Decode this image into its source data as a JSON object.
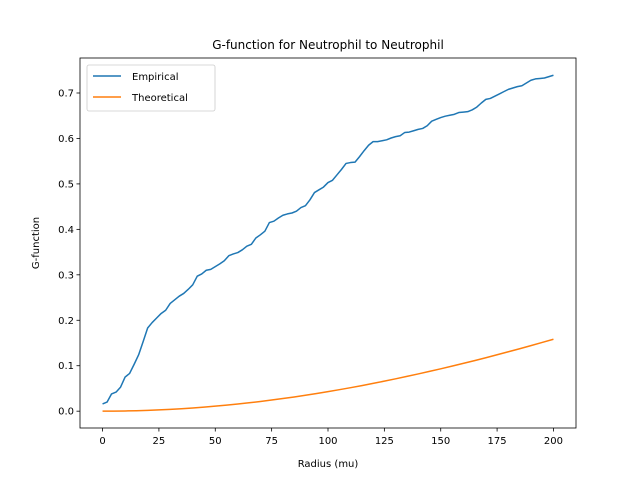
{
  "chart_data": {
    "type": "line",
    "title": "G-function for Neutrophil to Neutrophil",
    "xlabel": "Radius (mu)",
    "ylabel": "G-function",
    "xlim": [
      -10,
      210
    ],
    "ylim": [
      -0.037,
      0.777
    ],
    "xticks": [
      0,
      25,
      50,
      75,
      100,
      125,
      150,
      175,
      200
    ],
    "xtick_labels": [
      "0",
      "25",
      "50",
      "75",
      "100",
      "125",
      "150",
      "175",
      "200"
    ],
    "yticks": [
      0.0,
      0.1,
      0.2,
      0.3,
      0.4,
      0.5,
      0.6,
      0.7
    ],
    "ytick_labels": [
      "0.0",
      "0.1",
      "0.2",
      "0.3",
      "0.4",
      "0.5",
      "0.6",
      "0.7"
    ],
    "grid": false,
    "legend_position": "top-left",
    "series": [
      {
        "name": "Empirical",
        "color": "#1f77b4",
        "x": [
          0,
          2,
          4,
          6,
          8,
          10,
          12,
          14,
          16,
          18,
          20,
          22,
          24,
          26,
          28,
          30,
          32,
          34,
          36,
          38,
          40,
          42,
          44,
          46,
          48,
          50,
          52,
          54,
          56,
          58,
          60,
          62,
          64,
          66,
          68,
          70,
          72,
          74,
          76,
          78,
          80,
          82,
          84,
          86,
          88,
          90,
          92,
          94,
          96,
          98,
          100,
          102,
          104,
          106,
          108,
          110,
          112,
          114,
          116,
          118,
          120,
          122,
          124,
          126,
          128,
          130,
          132,
          134,
          136,
          138,
          140,
          142,
          144,
          146,
          148,
          150,
          152,
          154,
          156,
          158,
          160,
          162,
          164,
          166,
          168,
          170,
          172,
          174,
          176,
          178,
          180,
          182,
          184,
          186,
          188,
          190,
          192,
          194,
          196,
          198,
          200
        ],
        "values": [
          0.016,
          0.02,
          0.038,
          0.042,
          0.053,
          0.075,
          0.083,
          0.103,
          0.124,
          0.153,
          0.183,
          0.195,
          0.205,
          0.215,
          0.222,
          0.237,
          0.245,
          0.253,
          0.259,
          0.268,
          0.278,
          0.297,
          0.302,
          0.31,
          0.312,
          0.318,
          0.324,
          0.331,
          0.342,
          0.346,
          0.349,
          0.355,
          0.363,
          0.367,
          0.381,
          0.388,
          0.396,
          0.415,
          0.418,
          0.425,
          0.431,
          0.434,
          0.436,
          0.44,
          0.448,
          0.452,
          0.465,
          0.481,
          0.487,
          0.493,
          0.503,
          0.508,
          0.52,
          0.532,
          0.545,
          0.547,
          0.548,
          0.56,
          0.573,
          0.585,
          0.593,
          0.593,
          0.595,
          0.597,
          0.601,
          0.604,
          0.606,
          0.613,
          0.614,
          0.617,
          0.62,
          0.622,
          0.628,
          0.638,
          0.642,
          0.646,
          0.649,
          0.651,
          0.653,
          0.657,
          0.658,
          0.659,
          0.663,
          0.669,
          0.678,
          0.686,
          0.688,
          0.693,
          0.698,
          0.703,
          0.708,
          0.711,
          0.714,
          0.716,
          0.722,
          0.728,
          0.731,
          0.732,
          0.733,
          0.736,
          0.739
        ]
      },
      {
        "name": "Theoretical",
        "color": "#ff7f0e",
        "x": [
          0,
          5,
          10,
          15,
          20,
          25,
          30,
          35,
          40,
          45,
          50,
          55,
          60,
          65,
          70,
          75,
          80,
          85,
          90,
          95,
          100,
          105,
          110,
          115,
          120,
          125,
          130,
          135,
          140,
          145,
          150,
          155,
          160,
          165,
          170,
          175,
          180,
          185,
          190,
          195,
          200
        ],
        "values": [
          0.0,
          0.0001,
          0.0005,
          0.001,
          0.0018,
          0.0028,
          0.004,
          0.0054,
          0.0071,
          0.0089,
          0.011,
          0.0133,
          0.0158,
          0.0185,
          0.0214,
          0.0245,
          0.0278,
          0.0313,
          0.035,
          0.0389,
          0.043,
          0.0473,
          0.0517,
          0.0563,
          0.0611,
          0.0661,
          0.0712,
          0.0765,
          0.0819,
          0.0875,
          0.0932,
          0.0991,
          0.1051,
          0.1113,
          0.1176,
          0.1241,
          0.1307,
          0.1374,
          0.1442,
          0.1512,
          0.1583
        ]
      }
    ]
  }
}
